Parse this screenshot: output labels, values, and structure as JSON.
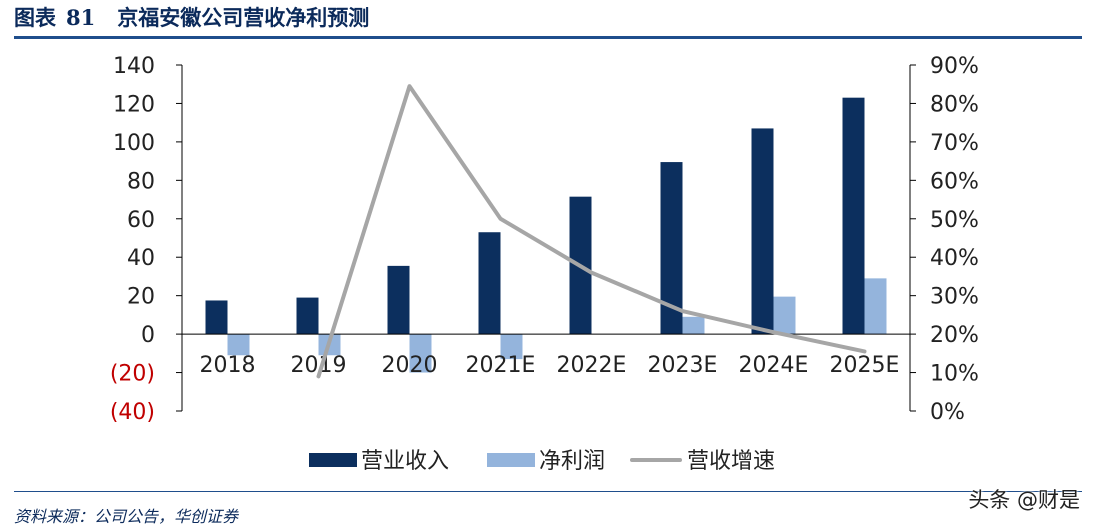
{
  "header": {
    "prefix": "图表",
    "number": "81",
    "title": "京福安徽公司营收净利预测"
  },
  "source_text": "资料来源：公司公告，华创证券",
  "watermark": "头条 @财是",
  "colors": {
    "revenue": "#0c2f5e",
    "net_profit": "#94b4dc",
    "growth": "#a6a6a6",
    "negative_tick": "#c00000",
    "title": "#0b2a5b"
  },
  "chart_data": {
    "type": "bar",
    "categories": [
      "2018",
      "2019",
      "2020",
      "2021E",
      "2022E",
      "2023E",
      "2024E",
      "2025E"
    ],
    "series": [
      {
        "name": "营业收入",
        "type": "bar",
        "axis": "left",
        "values": [
          17.5,
          19,
          35.5,
          53,
          71.5,
          89.5,
          107,
          123
        ]
      },
      {
        "name": "净利润",
        "type": "bar",
        "axis": "left",
        "values": [
          -11,
          -11,
          -20,
          -13,
          0,
          9,
          19.5,
          29
        ]
      },
      {
        "name": "营收增速",
        "type": "line",
        "axis": "right",
        "values": [
          null,
          0.09,
          0.845,
          0.5,
          0.36,
          0.26,
          0.205,
          0.155
        ]
      }
    ],
    "y_left": {
      "range": [
        -40,
        140
      ],
      "ticks": [
        140,
        120,
        100,
        80,
        60,
        40,
        20,
        0,
        -20,
        -40
      ],
      "tick_labels": [
        "140",
        "120",
        "100",
        "80",
        "60",
        "40",
        "20",
        "0",
        "(20)",
        "(40)"
      ]
    },
    "y_right": {
      "range": [
        0,
        0.9
      ],
      "ticks": [
        0.9,
        0.8,
        0.7,
        0.6,
        0.5,
        0.4,
        0.3,
        0.2,
        0.1,
        0
      ],
      "tick_labels": [
        "90%",
        "80%",
        "70%",
        "60%",
        "50%",
        "40%",
        "30%",
        "20%",
        "10%",
        "0%"
      ]
    },
    "grid": false,
    "legend": "bottom"
  }
}
